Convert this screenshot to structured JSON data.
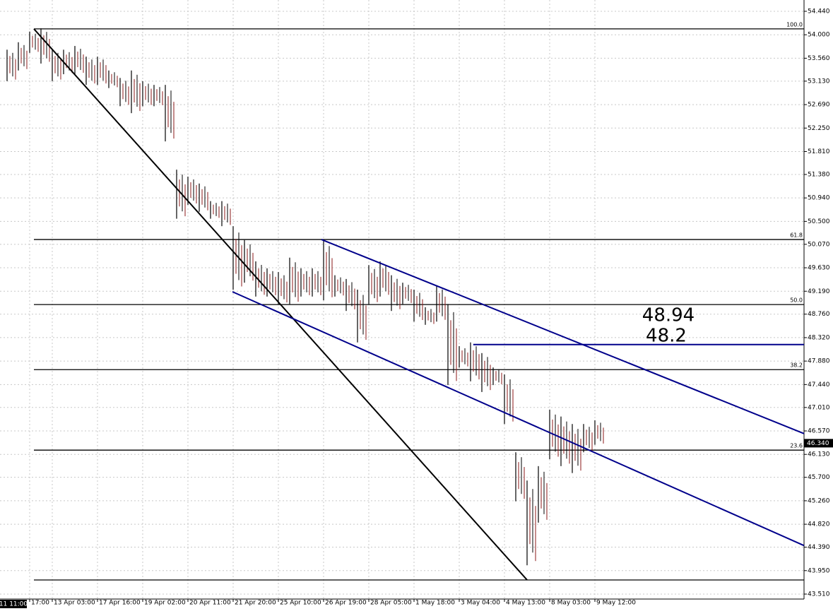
{
  "chart_data": {
    "type": "ohlc",
    "color": "#000000",
    "grid": true,
    "grid_color": "#c8c8c8",
    "xlim": [
      -0.156,
      17.625
    ],
    "ylim": [
      43.417,
      54.652
    ],
    "xticks": [
      {
        "value": 0.5,
        "label": "17:00"
      },
      {
        "value": 1,
        "label": "13 Apr 03:00"
      },
      {
        "value": 2,
        "label": "17 Apr 16:00"
      },
      {
        "value": 3,
        "label": "19 Apr 02:00"
      },
      {
        "value": 4,
        "label": "20 Apr 11:00"
      },
      {
        "value": 5,
        "label": "21 Apr 20:00"
      },
      {
        "value": 6,
        "label": "25 Apr 10:00"
      },
      {
        "value": 7,
        "label": "26 Apr 19:00"
      },
      {
        "value": 8,
        "label": "28 Apr 05:00"
      },
      {
        "value": 9,
        "label": "1 May 18:00"
      },
      {
        "value": 10,
        "label": "3 May 04:00"
      },
      {
        "value": 11,
        "label": "4 May 13:00"
      },
      {
        "value": 12,
        "label": "8 May 03:00"
      },
      {
        "value": 13,
        "label": "9 May 12:00"
      }
    ],
    "yticks": [
      {
        "value": 54.44,
        "label": "54.440"
      },
      {
        "value": 54.0,
        "label": "54.000"
      },
      {
        "value": 53.56,
        "label": "53.560"
      },
      {
        "value": 53.13,
        "label": "53.130"
      },
      {
        "value": 52.69,
        "label": "52.690"
      },
      {
        "value": 52.25,
        "label": "52.250"
      },
      {
        "value": 51.81,
        "label": "51.810"
      },
      {
        "value": 51.38,
        "label": "51.380"
      },
      {
        "value": 50.94,
        "label": "50.940"
      },
      {
        "value": 50.5,
        "label": "50.500"
      },
      {
        "value": 50.07,
        "label": "50.070"
      },
      {
        "value": 49.63,
        "label": "49.630"
      },
      {
        "value": 49.19,
        "label": "49.190"
      },
      {
        "value": 48.76,
        "label": "48.760"
      },
      {
        "value": 48.32,
        "label": "48.320"
      },
      {
        "value": 47.88,
        "label": "47.880"
      },
      {
        "value": 47.44,
        "label": "47.440"
      },
      {
        "value": 47.01,
        "label": "47.010"
      },
      {
        "value": 46.57,
        "label": "46.570"
      },
      {
        "value": 46.13,
        "label": "46.130"
      },
      {
        "value": 45.7,
        "label": "45.700"
      },
      {
        "value": 45.26,
        "label": "45.260"
      },
      {
        "value": 44.82,
        "label": "44.820"
      },
      {
        "value": 44.39,
        "label": "44.390"
      },
      {
        "value": 43.95,
        "label": "43.950"
      },
      {
        "value": 43.51,
        "label": "43.510"
      }
    ],
    "bars": {
      "x": [
        0,
        0.25,
        0.5,
        0.75,
        1,
        1.25,
        1.5,
        1.75,
        2,
        2.25,
        2.5,
        2.75,
        3,
        3.25,
        3.5,
        3.75,
        4,
        4.25,
        4.5,
        4.75,
        5,
        5.25,
        5.5,
        5.75,
        6,
        6.25,
        6.5,
        6.75,
        7,
        7.25,
        7.5,
        7.75,
        8,
        8.25,
        8.5,
        8.75,
        9,
        9.25,
        9.5,
        9.75,
        10,
        10.25,
        10.5,
        10.75,
        11,
        11.25,
        11.5,
        11.75,
        12,
        12.25,
        12.5,
        12.75,
        13
      ],
      "high": [
        53.72,
        53.86,
        54.06,
        54.12,
        53.72,
        53.72,
        53.79,
        53.59,
        53.59,
        53.33,
        53.19,
        53.33,
        53.13,
        53.06,
        53.06,
        51.47,
        51.34,
        51.21,
        50.88,
        50.88,
        50.41,
        50.15,
        49.75,
        49.62,
        49.55,
        49.82,
        49.62,
        49.62,
        50.15,
        49.49,
        49.42,
        49.22,
        49.68,
        49.75,
        49.49,
        49.35,
        49.22,
        48.89,
        49.29,
        48.95,
        48.16,
        48.23,
        48.03,
        47.76,
        47.63,
        46.17,
        45.64,
        45.91,
        46.97,
        46.84,
        46.7,
        46.7,
        46.77
      ],
      "low": [
        53.13,
        53.33,
        53.66,
        53.46,
        53.13,
        53.26,
        53.26,
        53.06,
        53.06,
        53.0,
        52.66,
        52.53,
        52.66,
        52.66,
        52.0,
        50.55,
        50.81,
        50.68,
        50.55,
        50.41,
        49.22,
        49.35,
        49.09,
        49.09,
        48.95,
        48.95,
        49.09,
        49.09,
        49.02,
        49.09,
        48.82,
        48.23,
        48.95,
        49.09,
        48.82,
        48.95,
        48.62,
        48.56,
        48.62,
        47.43,
        47.76,
        47.5,
        47.3,
        47.43,
        46.7,
        45.25,
        44.05,
        44.85,
        46.04,
        45.91,
        45.78,
        46.17,
        46.31
      ]
    },
    "levels": [
      {
        "label": "100.0",
        "value": 54.11
      },
      {
        "label": "61.8",
        "value": 50.16
      },
      {
        "label": "50.0",
        "value": 48.94
      },
      {
        "label": "38.2",
        "value": 47.72
      },
      {
        "label": "23.6",
        "value": 46.21
      },
      {
        "value": 43.775
      }
    ],
    "trendlines": [
      {
        "color": "#000000",
        "x": [
          0.594,
          11.5
        ],
        "y": [
          54.11,
          43.775
        ]
      },
      {
        "color": "#00008b",
        "x": [
          6.953,
          17.625
        ],
        "y": [
          50.16,
          46.52
        ]
      },
      {
        "color": "#00008b",
        "x": [
          4.984,
          17.625
        ],
        "y": [
          49.18,
          44.42
        ]
      },
      {
        "color": "#00008b",
        "x": [
          10.31,
          17.625
        ],
        "y": [
          48.19,
          48.19
        ]
      }
    ],
    "annotations": [
      "48.94",
      "48.2"
    ],
    "current_price": {
      "value": 46.34,
      "label": "46.340"
    },
    "cursor_label": "11 11:00"
  }
}
